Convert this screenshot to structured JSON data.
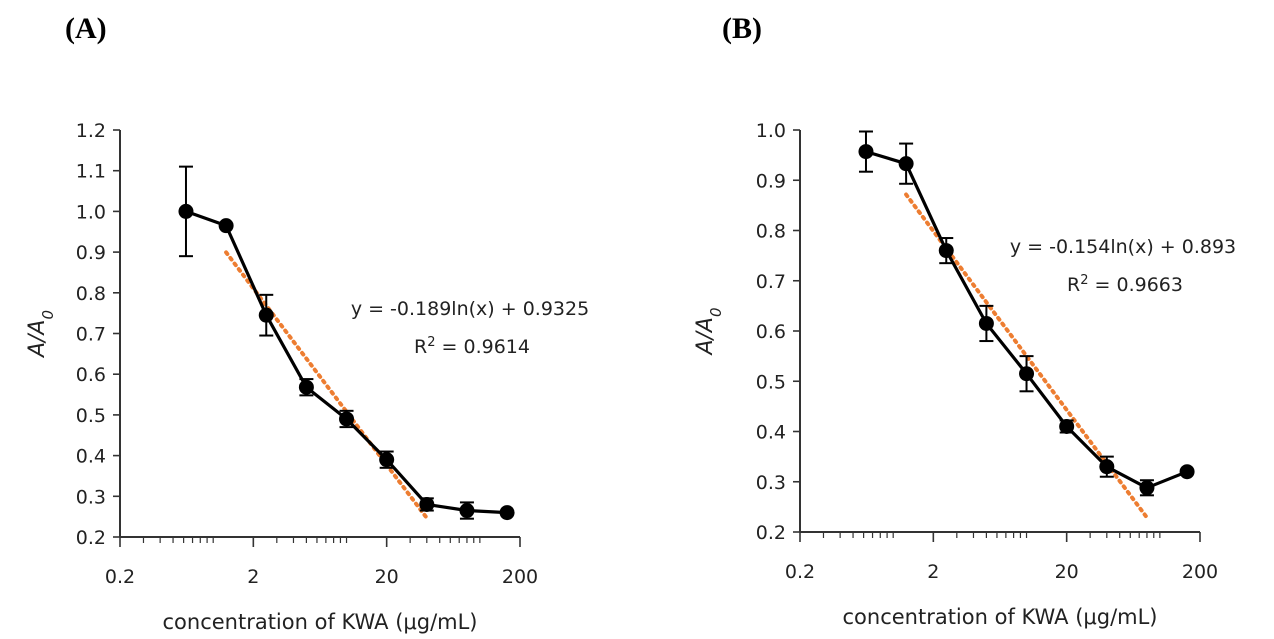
{
  "chart_data": [
    {
      "panel_label": "(A)",
      "type": "line",
      "xlabel": "concentration of KWA (μg/mL)",
      "ylabel_main": "A/A",
      "ylabel_sub": "0",
      "x_scale": "log",
      "xlim": [
        0.2,
        200
      ],
      "ylim": [
        0.2,
        1.2
      ],
      "x_tick_values": [
        0.2,
        2,
        20,
        200
      ],
      "x_tick_labels": [
        "0.2",
        "2",
        "20",
        "200"
      ],
      "y_tick_values": [
        0.2,
        0.3,
        0.4,
        0.5,
        0.6,
        0.7,
        0.8,
        0.9,
        1.0,
        1.1,
        1.2
      ],
      "y_tick_labels": [
        "0.2",
        "0.3",
        "0.4",
        "0.5",
        "0.6",
        "0.7",
        "0.8",
        "0.9",
        "1.0",
        "1.1",
        "1.2"
      ],
      "series": [
        {
          "x": [
            0.625,
            1.25,
            2.5,
            5,
            10,
            20,
            40,
            80,
            160
          ],
          "y": [
            1.0,
            0.965,
            0.745,
            0.568,
            0.49,
            0.39,
            0.28,
            0.265,
            0.26
          ],
          "err": [
            0.11,
            0.0,
            0.05,
            0.02,
            0.02,
            0.02,
            0.015,
            0.02,
            0.0
          ],
          "color": "#000000"
        }
      ],
      "trendline": {
        "type": "logarithmic",
        "x_range": [
          1.25,
          40
        ],
        "color": "#ED7D31",
        "equation_text": "y = -0.189ln(x) + 0.9325",
        "r2_prefix": "R",
        "r2_sup": "2",
        "r2_value": " = 0.9614"
      }
    },
    {
      "panel_label": "(B)",
      "type": "line",
      "xlabel": "concentration of KWA (μg/mL)",
      "ylabel_main": "A/A",
      "ylabel_sub": "0",
      "x_scale": "log",
      "xlim": [
        0.2,
        200
      ],
      "ylim": [
        0.2,
        1.0
      ],
      "x_tick_values": [
        0.2,
        2,
        20,
        200
      ],
      "x_tick_labels": [
        "0.2",
        "2",
        "20",
        "200"
      ],
      "y_tick_values": [
        0.2,
        0.3,
        0.4,
        0.5,
        0.6,
        0.7,
        0.8,
        0.9,
        1.0
      ],
      "y_tick_labels": [
        "0.2",
        "0.3",
        "0.4",
        "0.5",
        "0.6",
        "0.7",
        "0.8",
        "0.9",
        "1.0"
      ],
      "series": [
        {
          "x": [
            0.625,
            1.25,
            2.5,
            5,
            10,
            20,
            40,
            80,
            160
          ],
          "y": [
            0.957,
            0.933,
            0.76,
            0.615,
            0.515,
            0.41,
            0.33,
            0.288,
            0.32
          ],
          "err": [
            0.04,
            0.04,
            0.025,
            0.035,
            0.035,
            0.012,
            0.02,
            0.015,
            0.0
          ],
          "color": "#000000"
        }
      ],
      "trendline": {
        "type": "logarithmic",
        "x_range": [
          1.25,
          80
        ],
        "color": "#ED7D31",
        "equation_text": "y = -0.154ln(x) + 0.893",
        "r2_prefix": "R",
        "r2_sup": "2",
        "r2_value": " = 0.9663"
      }
    }
  ]
}
